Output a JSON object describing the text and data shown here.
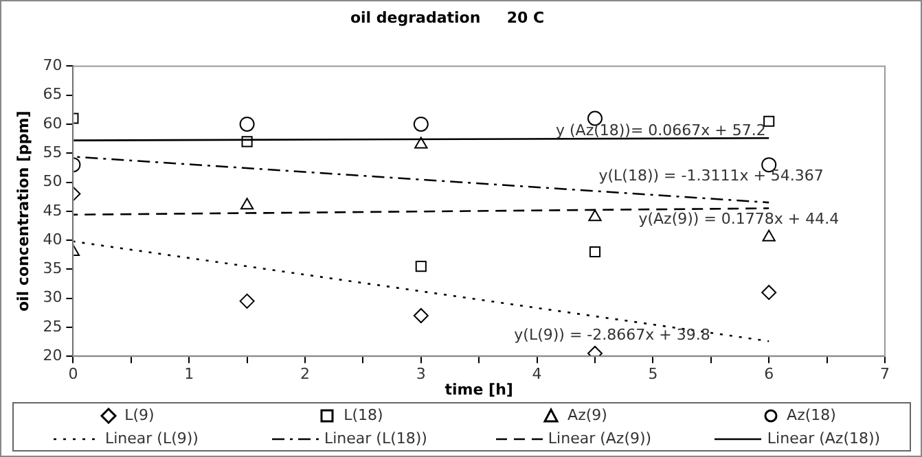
{
  "chart_data": {
    "type": "scatter",
    "title": "oil degradation     20 C",
    "xlabel": "time [h]",
    "ylabel": "oil concentration [ppm]",
    "xlim": [
      0,
      7
    ],
    "xticks": [
      0,
      {
        "value": 0.5,
        "label": null
      },
      1,
      {
        "value": 1.5,
        "label": null
      },
      2,
      {
        "value": 2.5,
        "label": null
      },
      3,
      {
        "value": 3.5,
        "label": null
      },
      4,
      {
        "value": 4.5,
        "label": null
      },
      5,
      {
        "value": 5.5,
        "label": null
      },
      6,
      {
        "value": 6.5,
        "label": null
      },
      7
    ],
    "ylim": [
      20,
      70
    ],
    "yticks": [
      20,
      25,
      30,
      35,
      40,
      45,
      50,
      55,
      60,
      65,
      70
    ],
    "grid": false,
    "legend": "bottom",
    "series": [
      {
        "name": "L(9)",
        "marker": "diamond",
        "color": "#000000",
        "x": [
          0,
          1.5,
          3,
          4.5,
          6
        ],
        "values": [
          48,
          29.5,
          27,
          20.5,
          31
        ]
      },
      {
        "name": "L(18)",
        "marker": "square",
        "color": "#000000",
        "x": [
          0,
          1.5,
          3,
          4.5,
          6
        ],
        "values": [
          61,
          57,
          35.5,
          38,
          60.5
        ]
      },
      {
        "name": "Az(9)",
        "marker": "triangle",
        "color": "#000000",
        "x": [
          0,
          1.5,
          3,
          4.5,
          6
        ],
        "values": [
          38,
          46,
          56.5,
          44,
          40.5
        ]
      },
      {
        "name": "Az(18)",
        "marker": "circle",
        "color": "#000000",
        "x": [
          0,
          1.5,
          3,
          4.5,
          6
        ],
        "values": [
          53,
          60,
          60,
          61,
          53
        ]
      },
      {
        "name": "Linear (L(9))",
        "type": "line",
        "marker": "none",
        "line_style": "dotted",
        "color": "#000000",
        "x": [
          0,
          6
        ],
        "values": [
          39.8,
          22.6
        ]
      },
      {
        "name": "Linear (L(18))",
        "type": "line",
        "marker": "none",
        "line_style": "dashdot",
        "color": "#000000",
        "x": [
          0,
          6
        ],
        "values": [
          54.4,
          46.5
        ]
      },
      {
        "name": "Linear (Az(9))",
        "type": "line",
        "marker": "none",
        "line_style": "dashed",
        "color": "#000000",
        "x": [
          0,
          6
        ],
        "values": [
          44.4,
          45.5
        ]
      },
      {
        "name": "Linear (Az(18))",
        "type": "line",
        "marker": "none",
        "line_style": "solid",
        "color": "#000000",
        "x": [
          0,
          6
        ],
        "values": [
          57.2,
          57.6
        ]
      }
    ],
    "annotations": [
      "y (Az(18))= 0.0667x + 57.2",
      "y(L(18)) = -1.3111x + 54.367",
      "y(Az(9)) = 0.1778x + 44.4",
      "y(L(9)) = -2.8667x + 39.8"
    ]
  }
}
